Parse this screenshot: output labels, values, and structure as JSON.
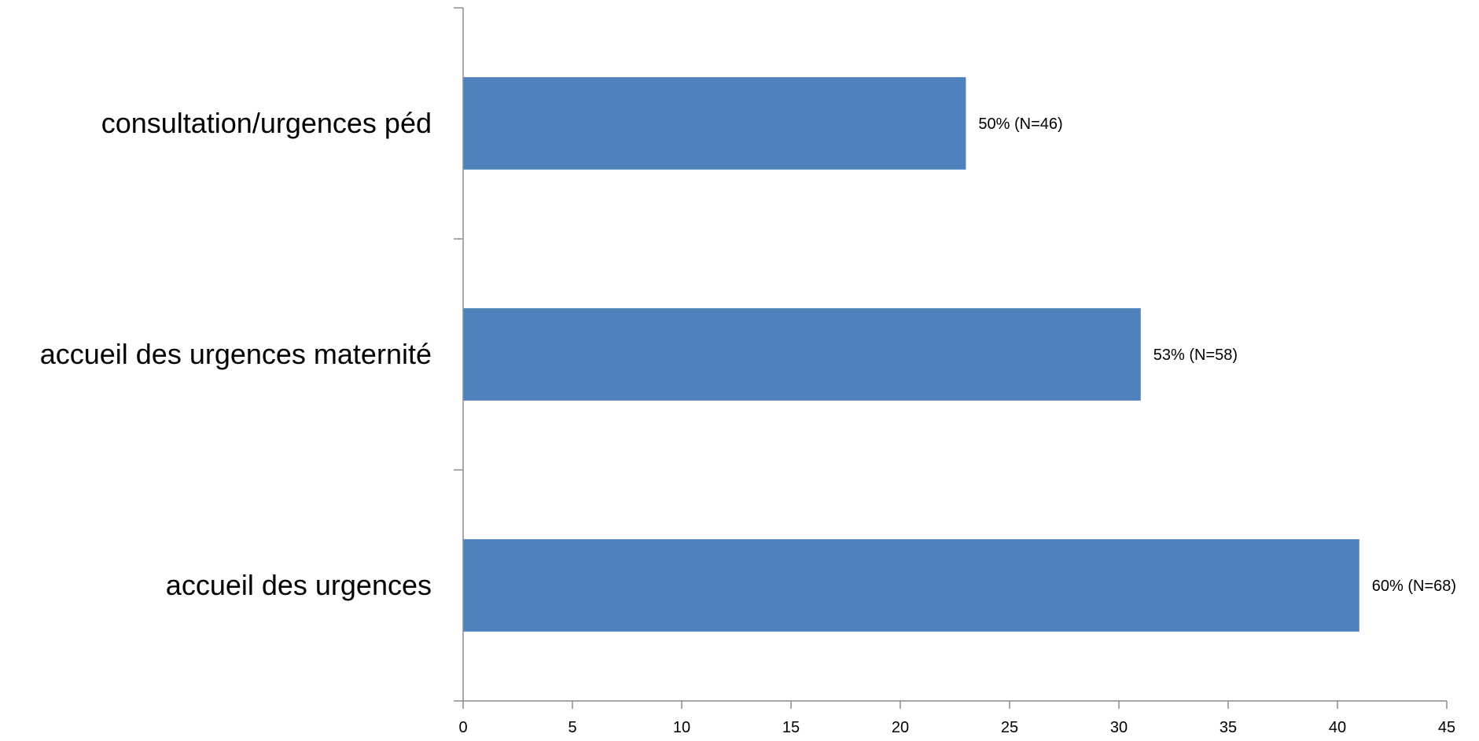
{
  "chart_data": {
    "type": "bar",
    "orientation": "horizontal",
    "categories": [
      "consultation/urgences péd",
      "accueil des urgences maternité",
      "accueil des urgences"
    ],
    "values": [
      23,
      31,
      41
    ],
    "data_labels": [
      "50% (N=46)",
      "53% (N=58)",
      "60% (N=68)"
    ],
    "x_ticks": [
      0,
      5,
      10,
      15,
      20,
      25,
      30,
      35,
      40,
      45
    ],
    "xlim": [
      0,
      45
    ],
    "title": "",
    "xlabel": "",
    "ylabel": "",
    "grid": false,
    "legend": "none",
    "bar_color": "#4f81bd",
    "axis_color": "#8c8c8c"
  }
}
